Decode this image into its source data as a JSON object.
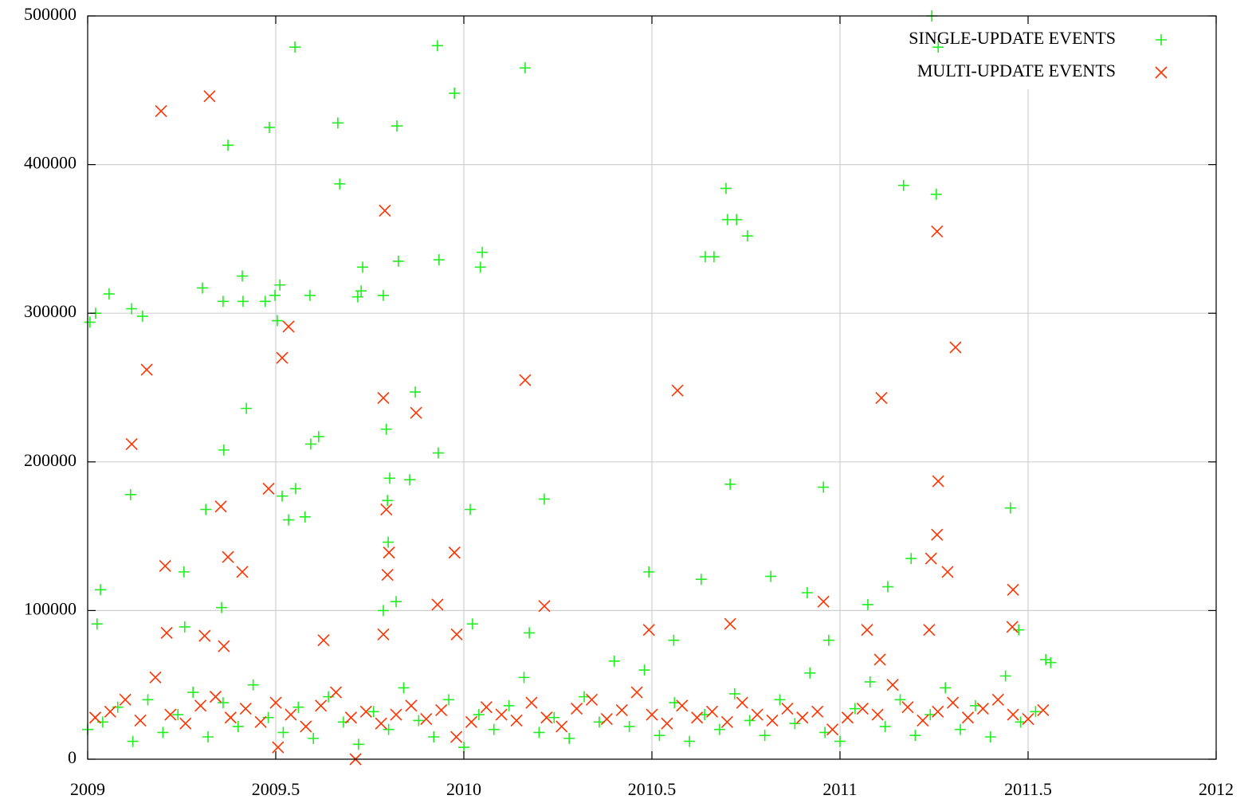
{
  "chart_data": {
    "type": "scatter",
    "xlim": [
      2009,
      2012
    ],
    "xticks": [
      2009,
      2009.5,
      2010,
      2010.5,
      2011,
      2011.5,
      2012
    ],
    "ylim": [
      0,
      500000
    ],
    "yticks": [
      0,
      100000,
      200000,
      300000,
      400000,
      500000
    ],
    "grid": true,
    "legend": "top-right",
    "series": [
      {
        "name": "SINGLE-UPDATE EVENTS",
        "color": "#22ee22",
        "marker": "plus",
        "x": [
          2009.006,
          2009.021,
          2009.034,
          2009.025,
          2009.057,
          2009.117,
          2009.114,
          2009.146,
          2009.256,
          2009.258,
          2009.305,
          2009.314,
          2009.373,
          2009.362,
          2009.36,
          2009.356,
          2009.411,
          2009.413,
          2009.422,
          2009.483,
          2009.498,
          2009.472,
          2009.511,
          2009.504,
          2009.551,
          2009.517,
          2009.553,
          2009.534,
          2009.578,
          2009.591,
          2009.593,
          2009.614,
          2009.665,
          2009.67,
          2009.731,
          2009.727,
          2009.718,
          2009.786,
          2009.822,
          2009.826,
          2009.794,
          2009.803,
          2009.797,
          2009.799,
          2009.82,
          2009.786,
          2009.856,
          2009.871,
          2009.93,
          2009.975,
          2009.934,
          2009.932,
          2010.017,
          2010.049,
          2010.044,
          2010.023,
          2010.163,
          2010.214,
          2010.174,
          2010.492,
          2010.558,
          2010.631,
          2010.642,
          2010.665,
          2010.697,
          2010.701,
          2010.725,
          2010.754,
          2010.708,
          2010.816,
          2010.913,
          2010.956,
          2010.97,
          2011.169,
          2011.189,
          2011.127,
          2011.074,
          2011.244,
          2011.261,
          2011.256,
          2011.453,
          2011.475,
          2011.547,
          2009.0,
          2009.04,
          2009.08,
          2009.12,
          2009.16,
          2009.2,
          2009.24,
          2009.28,
          2009.32,
          2009.36,
          2009.4,
          2009.44,
          2009.48,
          2009.52,
          2009.56,
          2009.6,
          2009.64,
          2009.68,
          2009.72,
          2009.76,
          2009.8,
          2009.84,
          2009.88,
          2009.92,
          2009.96,
          2010.0,
          2010.04,
          2010.08,
          2010.12,
          2010.16,
          2010.2,
          2010.24,
          2010.28,
          2010.32,
          2010.36,
          2010.4,
          2010.44,
          2010.48,
          2010.52,
          2010.56,
          2010.6,
          2010.64,
          2010.68,
          2010.72,
          2010.76,
          2010.8,
          2010.84,
          2010.88,
          2010.92,
          2010.96,
          2011.0,
          2011.04,
          2011.08,
          2011.12,
          2011.16,
          2011.2,
          2011.24,
          2011.28,
          2011.32,
          2011.36,
          2011.4,
          2011.44,
          2011.48,
          2011.52,
          2011.56
        ],
        "values": [
          294000,
          300000,
          114000,
          91000,
          313000,
          303000,
          178000,
          298000,
          126000,
          89000,
          317000,
          168000,
          413000,
          208000,
          308000,
          102000,
          325000,
          308000,
          236000,
          425000,
          312000,
          308000,
          319000,
          295000,
          479000,
          177000,
          182000,
          161000,
          163000,
          312000,
          212000,
          217000,
          428000,
          387000,
          331000,
          315000,
          311000,
          312000,
          426000,
          335000,
          222000,
          189000,
          174000,
          146000,
          106000,
          100000,
          188000,
          247000,
          480000,
          448000,
          336000,
          206000,
          168000,
          341000,
          331000,
          91000,
          465000,
          175000,
          85000,
          126000,
          80000,
          121000,
          338000,
          338000,
          384000,
          363000,
          363000,
          352000,
          185000,
          123000,
          112000,
          183000,
          80000,
          386000,
          135000,
          116000,
          104000,
          500000,
          479000,
          380000,
          169000,
          87000,
          67000,
          20000,
          25000,
          35000,
          12000,
          40000,
          18000,
          30000,
          45000,
          15000,
          38000,
          22000,
          50000,
          28000,
          18000,
          35000,
          14000,
          42000,
          25000,
          10000,
          32000,
          20000,
          48000,
          26000,
          15000,
          40000,
          8000,
          30000,
          20000,
          36000,
          55000,
          18000,
          28000,
          14000,
          42000,
          25000,
          66000,
          22000,
          60000,
          16000,
          38000,
          12000,
          30000,
          20000,
          44000,
          26000,
          16000,
          40000,
          24000,
          58000,
          18000,
          12000,
          34000,
          52000,
          22000,
          40000,
          16000,
          30000,
          48000,
          20000,
          36000,
          15000,
          56000,
          25000,
          32000,
          65000
        ]
      },
      {
        "name": "MULTI-UPDATE EVENTS",
        "color": "#ff3300",
        "marker": "cross",
        "x": [
          2009.195,
          2009.324,
          2009.157,
          2009.117,
          2009.206,
          2009.21,
          2009.354,
          2009.373,
          2009.411,
          2009.311,
          2009.362,
          2009.534,
          2009.517,
          2009.481,
          2009.627,
          2009.506,
          2009.712,
          2009.79,
          2009.786,
          2009.794,
          2009.801,
          2009.797,
          2009.786,
          2009.873,
          2009.93,
          2009.975,
          2009.981,
          2010.163,
          2010.214,
          2010.568,
          2010.492,
          2010.708,
          2010.956,
          2011.11,
          2011.072,
          2011.258,
          2011.307,
          2011.261,
          2011.258,
          2011.242,
          2011.286,
          2011.237,
          2011.46,
          2011.458,
          2011.106,
          2009.02,
          2009.06,
          2009.1,
          2009.14,
          2009.18,
          2009.22,
          2009.26,
          2009.3,
          2009.34,
          2009.38,
          2009.42,
          2009.46,
          2009.5,
          2009.54,
          2009.58,
          2009.62,
          2009.66,
          2009.7,
          2009.74,
          2009.78,
          2009.82,
          2009.86,
          2009.9,
          2009.94,
          2009.98,
          2010.02,
          2010.06,
          2010.1,
          2010.14,
          2010.18,
          2010.22,
          2010.26,
          2010.3,
          2010.34,
          2010.38,
          2010.42,
          2010.46,
          2010.5,
          2010.54,
          2010.58,
          2010.62,
          2010.66,
          2010.7,
          2010.74,
          2010.78,
          2010.82,
          2010.86,
          2010.9,
          2010.94,
          2010.98,
          2011.02,
          2011.06,
          2011.1,
          2011.14,
          2011.18,
          2011.22,
          2011.26,
          2011.3,
          2011.34,
          2011.38,
          2011.42,
          2011.46,
          2011.5,
          2011.54
        ],
        "values": [
          436000,
          446000,
          262000,
          212000,
          130000,
          85000,
          170000,
          136000,
          126000,
          83000,
          76000,
          291000,
          270000,
          182000,
          80000,
          8000,
          0,
          369000,
          243000,
          168000,
          139000,
          124000,
          84000,
          233000,
          104000,
          139000,
          84000,
          255000,
          103000,
          248000,
          87000,
          91000,
          106000,
          243000,
          87000,
          355000,
          277000,
          187000,
          151000,
          135000,
          126000,
          87000,
          114000,
          89000,
          67000,
          28000,
          32000,
          40000,
          26000,
          55000,
          30000,
          24000,
          36000,
          42000,
          28000,
          34000,
          25000,
          38000,
          30000,
          22000,
          36000,
          45000,
          28000,
          32000,
          24000,
          30000,
          36000,
          27000,
          33000,
          15000,
          25000,
          35000,
          30000,
          26000,
          38000,
          28000,
          22000,
          34000,
          40000,
          27000,
          33000,
          45000,
          30000,
          24000,
          36000,
          28000,
          32000,
          25000,
          38000,
          30000,
          26000,
          34000,
          28000,
          32000,
          20000,
          28000,
          34000,
          30000,
          50000,
          35000,
          26000,
          32000,
          38000,
          28000,
          34000,
          40000,
          30000,
          27000,
          33000
        ]
      }
    ]
  }
}
